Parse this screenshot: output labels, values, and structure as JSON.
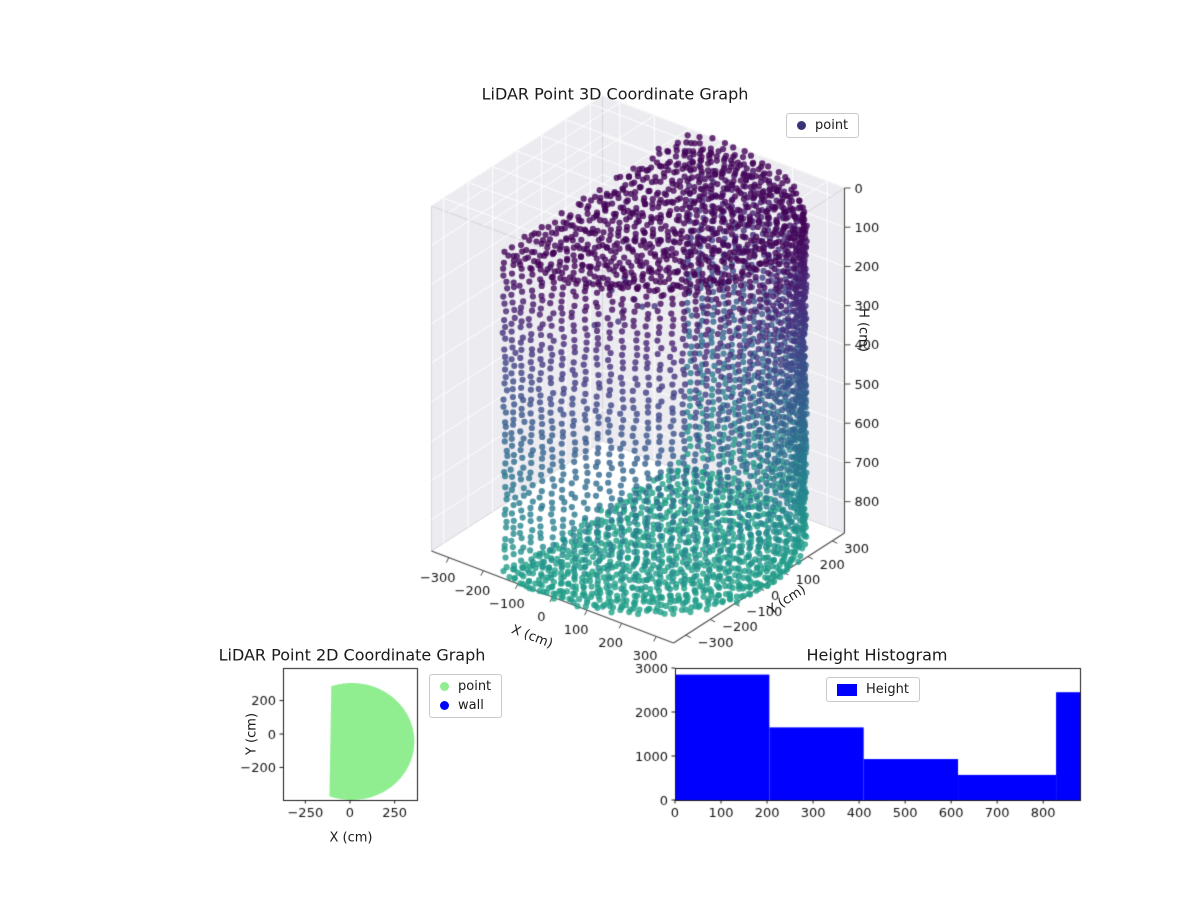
{
  "figure": {
    "background": "#ffffff"
  },
  "chart_data": [
    {
      "id": "lidar-3d-scatter",
      "type": "scatter3d",
      "title": "LiDAR Point 3D Coordinate Graph",
      "xlabel": "X (cm)",
      "ylabel": "Y (cm)",
      "zlabel": "H (cm)",
      "legend": [
        {
          "label": "point",
          "color": "#3a3276",
          "marker": "circle"
        }
      ],
      "xlim": [
        -350,
        350
      ],
      "ylim": [
        -350,
        350
      ],
      "zlim": [
        0,
        880
      ],
      "z_inverted": true,
      "xticks": [
        -300,
        -200,
        -100,
        0,
        100,
        200,
        300
      ],
      "yticks": [
        -300,
        -200,
        -100,
        0,
        100,
        200,
        300
      ],
      "zticks": [
        0,
        100,
        200,
        300,
        400,
        500,
        600,
        700,
        800
      ],
      "colormap": "viridis",
      "color_value": "height",
      "color_norm_max": 1500,
      "point_cloud": {
        "shape": "cylindrical-room-scan",
        "center_xy": [
          20,
          -30
        ],
        "radius_cm": 395,
        "clip_x_min": -118,
        "wall_z_range": [
          14,
          846
        ],
        "ceiling_z_range": [
          13,
          39
        ],
        "floor_z_range": [
          840,
          854
        ],
        "wall_columns": 84,
        "wall_row_step": 18.5,
        "ring_step": 21,
        "stray_points": 45
      }
    },
    {
      "id": "lidar-2d-scatter",
      "type": "scatter",
      "title": "LiDAR Point 2D Coordinate Graph",
      "xlabel": "X (cm)",
      "ylabel": "Y (cm)",
      "legend": [
        {
          "label": "point",
          "color": "#90ee90",
          "marker": "circle"
        },
        {
          "label": "wall",
          "color": "#0000ff",
          "marker": "circle"
        }
      ],
      "xlim": [
        -375,
        375
      ],
      "ylim": [
        -395,
        395
      ],
      "xticks": [
        -250,
        0,
        250
      ],
      "yticks": [
        200,
        0,
        -200
      ],
      "blob": {
        "shape": "clipped-disc",
        "center": [
          10,
          -45
        ],
        "radius": 350,
        "clip_x_min": -115,
        "color": "#90ee90"
      }
    },
    {
      "id": "height-histogram",
      "type": "bar",
      "title": "Height Histogram",
      "legend": [
        {
          "label": "Height",
          "color": "#0000ff",
          "marker": "square"
        }
      ],
      "xlim": [
        0,
        880
      ],
      "ylim": [
        0,
        3000
      ],
      "xticks": [
        0,
        100,
        200,
        300,
        400,
        500,
        600,
        700,
        800
      ],
      "yticks": [
        0,
        1000,
        2000,
        3000
      ],
      "bin_edges": [
        0,
        205,
        410,
        615,
        828,
        880
      ],
      "counts": [
        2850,
        1650,
        930,
        570,
        2450
      ],
      "bar_color": "#0000ff"
    }
  ]
}
